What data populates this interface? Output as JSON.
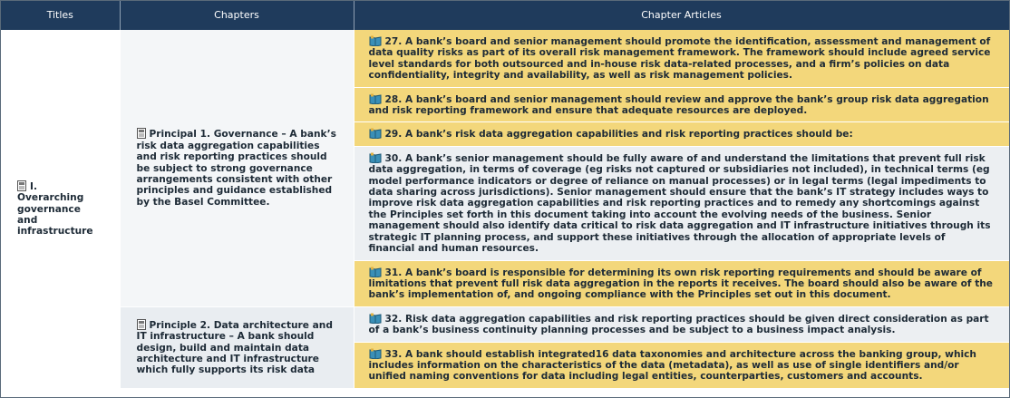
{
  "header": {
    "columns": [
      "Titles",
      "Chapters",
      "Chapter Articles"
    ]
  },
  "sections": [
    {
      "title": "I. Overarching governance and infrastructure",
      "chapters": [
        {
          "text": "Principal 1. Governance – A bank’s risk data aggregation capabilities and risk reporting practices should be subject to strong governance arrangements consistent with other principles and guidance established by the Basel Committee.",
          "color": "#f4f6f8",
          "articles": [
            {
              "text": "27. A bank’s board and senior management should promote the identification, assessment and management of data quality risks as part of its overall risk management framework. The framework should include agreed service level standards for both outsourced and in-house risk data-related processes, and a firm’s policies on data confidentiality, integrity and availability, as well as risk management policies.",
              "color": "#f3d77b"
            },
            {
              "text": "28. A bank’s board and senior management should review and approve the bank’s group risk data aggregation and risk reporting framework and ensure that adequate resources are deployed.",
              "color": "#f3d77b"
            },
            {
              "text": "29. A bank’s risk data aggregation capabilities and risk reporting practices should be:",
              "color": "#f3d77b"
            },
            {
              "text": "30. A bank’s senior management should be fully aware of and understand the limitations that prevent full risk data aggregation, in terms of coverage (eg risks not captured or subsidiaries not included), in technical terms (eg model performance indicators or degree of reliance on manual processes) or in legal terms (legal impediments to data sharing across jurisdictions). Senior management should ensure that the bank’s IT strategy includes ways to improve risk data aggregation capabilities and risk reporting practices and to remedy any shortcomings against the Principles set forth in this document  taking into account the evolving needs of the business. Senior management should also identify data critical to risk data aggregation and IT infrastructure initiatives through its strategic IT planning process, and support these initiatives through the allocation of appropriate levels of financial and human resources.",
              "color": "#eceff2"
            },
            {
              "text": "31. A bank’s board is responsible for determining its own risk reporting requirements and should be aware of limitations that prevent full risk data aggregation in the reports it receives. The board should also be aware of the bank’s implementation of, and ongoing compliance with the Principles set out in this document.",
              "color": "#f3d77b"
            }
          ]
        },
        {
          "text": "Principle 2. Data architecture and IT infrastructure – A bank should design, build and maintain data architecture and IT infrastructure which fully supports its risk data",
          "color": "#e9edf1",
          "articles": [
            {
              "text": "32. Risk data aggregation capabilities and risk reporting practices should be given direct consideration as part of a bank’s business continuity planning processes and be subject to a business impact analysis.",
              "color": "#eceff2"
            },
            {
              "text": "33. A bank should establish integrated16 data taxonomies and architecture across the banking group, which includes information on the characteristics of the data (metadata), as well as use of single identifiers and/or unified naming conventions for data including legal entities, counterparties, customers and accounts.",
              "color": "#f3d77b"
            }
          ]
        }
      ]
    }
  ]
}
